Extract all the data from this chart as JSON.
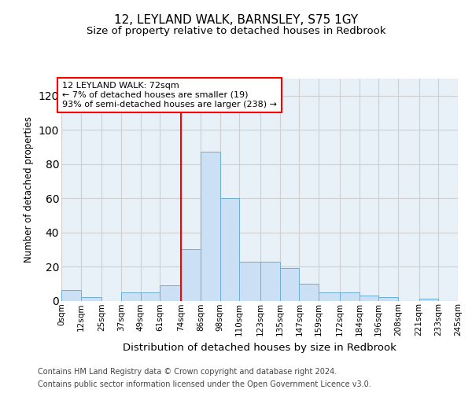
{
  "title1": "12, LEYLAND WALK, BARNSLEY, S75 1GY",
  "title2": "Size of property relative to detached houses in Redbrook",
  "xlabel": "Distribution of detached houses by size in Redbrook",
  "ylabel": "Number of detached properties",
  "footnote1": "Contains HM Land Registry data © Crown copyright and database right 2024.",
  "footnote2": "Contains public sector information licensed under the Open Government Licence v3.0.",
  "annotation_line1": "12 LEYLAND WALK: 72sqm",
  "annotation_line2": "← 7% of detached houses are smaller (19)",
  "annotation_line3": "93% of semi-detached houses are larger (238) →",
  "bin_edges": [
    0,
    12,
    25,
    37,
    49,
    61,
    74,
    86,
    98,
    110,
    123,
    135,
    147,
    159,
    172,
    184,
    196,
    208,
    221,
    233,
    245
  ],
  "bin_labels": [
    "0sqm",
    "12sqm",
    "25sqm",
    "37sqm",
    "49sqm",
    "61sqm",
    "74sqm",
    "86sqm",
    "98sqm",
    "110sqm",
    "123sqm",
    "135sqm",
    "147sqm",
    "159sqm",
    "172sqm",
    "184sqm",
    "196sqm",
    "208sqm",
    "221sqm",
    "233sqm",
    "245sqm"
  ],
  "counts": [
    6,
    2,
    0,
    5,
    5,
    9,
    30,
    87,
    60,
    23,
    23,
    19,
    10,
    5,
    5,
    3,
    2,
    0,
    1,
    0
  ],
  "bar_color": "#cce0f5",
  "bar_edge_color": "#6baed6",
  "red_line_x": 74,
  "ylim": [
    0,
    130
  ],
  "yticks": [
    0,
    20,
    40,
    60,
    80,
    100,
    120
  ],
  "background_color": "#ffffff",
  "grid_color": "#d0d0d0"
}
